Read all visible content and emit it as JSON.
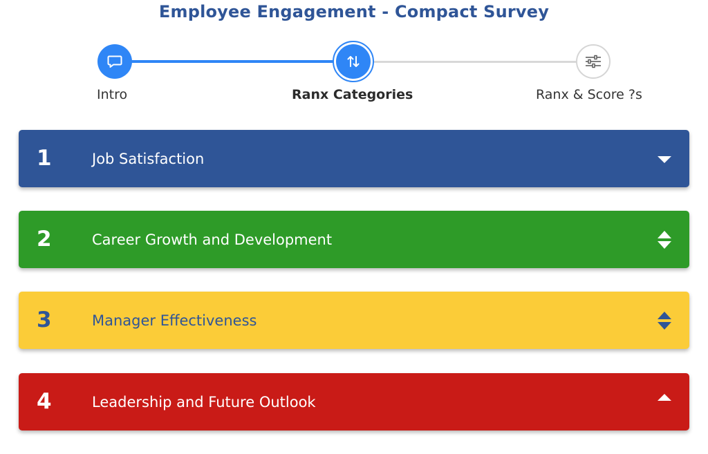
{
  "header": {
    "title": "Employee Engagement - Compact Survey"
  },
  "stepper": {
    "steps": [
      {
        "label": "Intro",
        "icon": "speech-bubble-icon",
        "state": "completed"
      },
      {
        "label": "Ranx Categories",
        "icon": "sort-arrows-icon",
        "state": "active"
      },
      {
        "label": "Ranx & Score ?s",
        "icon": "sliders-icon",
        "state": "pending"
      }
    ],
    "colors": {
      "active": "#2f86f6",
      "pending": "#d8d8d8"
    }
  },
  "categories": [
    {
      "rank": "1",
      "label": "Job Satisfaction",
      "color": "#2f5597",
      "arrow": "move-down-icon"
    },
    {
      "rank": "2",
      "label": "Career Growth and Development",
      "color": "#2e9b28",
      "arrow": "move-up-down-icon"
    },
    {
      "rank": "3",
      "label": "Manager Effectiveness",
      "color": "#fbcc38",
      "arrow": "move-up-down-icon"
    },
    {
      "rank": "4",
      "label": "Leadership and Future Outlook",
      "color": "#c91b17",
      "arrow": "move-up-icon"
    }
  ]
}
